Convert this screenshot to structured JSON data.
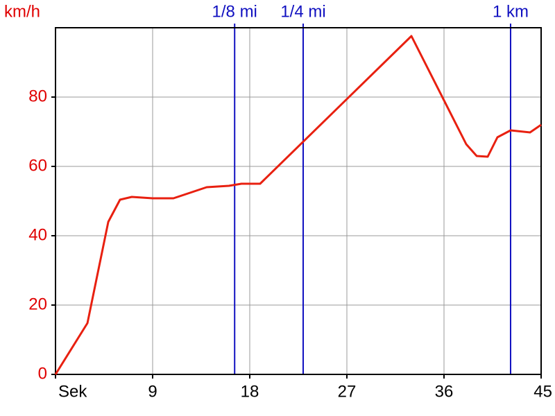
{
  "chart_data": {
    "type": "line",
    "y_label": "km/h",
    "x": [
      0,
      2.96,
      4.89,
      5.98,
      7.07,
      9.0,
      10.93,
      14.01,
      16.07,
      17.23,
      18.96,
      32.98,
      38.06,
      39.03,
      40.05,
      40.95,
      42.17,
      43.97,
      45
    ],
    "series": [
      {
        "color": "#e82010",
        "values": [
          0,
          14.8,
          44,
          50.4,
          51.2,
          50.8,
          50.8,
          54,
          54.4,
          55,
          55,
          97.6,
          66.4,
          63,
          62.8,
          68.4,
          70.4,
          69.8,
          72
        ]
      }
    ],
    "xlim": [
      0,
      45
    ],
    "xticks": [
      {
        "value": 0,
        "label": "Sek"
      },
      9,
      18,
      27,
      36,
      45
    ],
    "ylim": [
      0,
      100
    ],
    "yticks": [
      0,
      20,
      40,
      60,
      80
    ],
    "grid": true,
    "axis_color": "#e00000",
    "marker_color": "#1010c0",
    "markers": [
      {
        "label": "1/8 mi",
        "x": 16.6
      },
      {
        "label": "1/4 mi",
        "x": 22.95
      },
      {
        "label": "1 km",
        "x": 42.17
      }
    ]
  }
}
